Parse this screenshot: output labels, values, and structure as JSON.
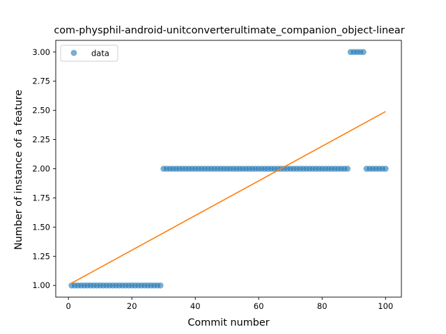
{
  "chart_data": {
    "type": "scatter",
    "title": "com-physphil-android-unitconverterultimate_companion_object-linear",
    "xlabel": "Commit number",
    "ylabel": "Number of instance of a feature",
    "xlim": [
      -4.0,
      105.0
    ],
    "ylim": [
      0.9,
      3.1
    ],
    "xticks": [
      0,
      20,
      40,
      60,
      80,
      100
    ],
    "yticks": [
      1.0,
      1.25,
      1.5,
      1.75,
      2.0,
      2.25,
      2.5,
      2.75,
      3.0
    ],
    "xtick_labels": [
      "0",
      "20",
      "40",
      "60",
      "80",
      "100"
    ],
    "ytick_labels": [
      "1.00",
      "1.25",
      "1.50",
      "1.75",
      "2.00",
      "2.25",
      "2.50",
      "2.75",
      "3.00"
    ],
    "legend": {
      "placement": "upper left",
      "entries": [
        "data"
      ]
    },
    "grid": false,
    "series": [
      {
        "name": "data",
        "kind": "scatter",
        "color": "#1f77b4",
        "x": [
          1,
          2,
          3,
          4,
          5,
          6,
          7,
          8,
          9,
          10,
          11,
          12,
          13,
          14,
          15,
          16,
          17,
          18,
          19,
          20,
          21,
          22,
          23,
          24,
          25,
          26,
          27,
          28,
          29,
          30,
          31,
          32,
          33,
          34,
          35,
          36,
          37,
          38,
          39,
          40,
          41,
          42,
          43,
          44,
          45,
          46,
          47,
          48,
          49,
          50,
          51,
          52,
          53,
          54,
          55,
          56,
          57,
          58,
          59,
          60,
          61,
          62,
          63,
          64,
          65,
          66,
          67,
          68,
          69,
          70,
          71,
          72,
          73,
          74,
          75,
          76,
          77,
          78,
          79,
          80,
          81,
          82,
          83,
          84,
          85,
          86,
          87,
          88,
          89,
          90,
          91,
          92,
          93,
          94,
          95,
          96,
          97,
          98,
          99,
          100
        ],
        "y": [
          1,
          1,
          1,
          1,
          1,
          1,
          1,
          1,
          1,
          1,
          1,
          1,
          1,
          1,
          1,
          1,
          1,
          1,
          1,
          1,
          1,
          1,
          1,
          1,
          1,
          1,
          1,
          1,
          1,
          2,
          2,
          2,
          2,
          2,
          2,
          2,
          2,
          2,
          2,
          2,
          2,
          2,
          2,
          2,
          2,
          2,
          2,
          2,
          2,
          2,
          2,
          2,
          2,
          2,
          2,
          2,
          2,
          2,
          2,
          2,
          2,
          2,
          2,
          2,
          2,
          2,
          2,
          2,
          2,
          2,
          2,
          2,
          2,
          2,
          2,
          2,
          2,
          2,
          2,
          2,
          2,
          2,
          2,
          2,
          2,
          2,
          2,
          2,
          3,
          3,
          3,
          3,
          3,
          2,
          2,
          2,
          2,
          2,
          2,
          2
        ]
      },
      {
        "kind": "line",
        "color": "#ff7f0e",
        "x": [
          1,
          100
        ],
        "y": [
          1.02,
          2.49
        ]
      }
    ]
  }
}
